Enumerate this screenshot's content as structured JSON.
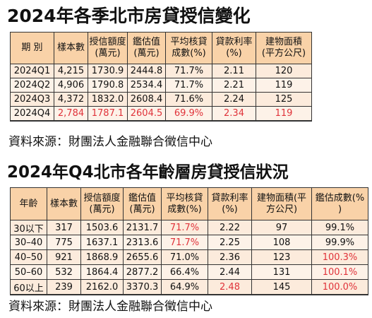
{
  "table1": {
    "title": "2024年各季北市房貸授信變化",
    "headers": [
      "期 別",
      "樣本數",
      "授信額度\n(萬元)",
      "鑑估值\n(萬元)",
      "平均核貸\n成數(%)",
      "貸款利率\n(%)",
      "建物面積\n(平方公尺)"
    ],
    "rows": [
      [
        "2024Q1",
        "4,215",
        "1730.9",
        "2444.8",
        "71.7%",
        "2.11",
        "120"
      ],
      [
        "2024Q2",
        "4,906",
        "1790.8",
        "2534.4",
        "71.7%",
        "2.21",
        "119"
      ],
      [
        "2024Q3",
        "4,372",
        "1832.0",
        "2608.4",
        "71.6%",
        "2.24",
        "125"
      ],
      [
        "2024Q4",
        "2,784",
        "1787.1",
        "2604.5",
        "69.9%",
        "2.34",
        "119"
      ]
    ],
    "source": "資料來源：財團法人金融聯合徵信中心"
  },
  "table2": {
    "title": "2024年Q4北市各年齡層房貸授信狀況",
    "headers": [
      "年齡",
      "樣本數",
      "授信額度\n(萬元)",
      "鑑估值\n(萬元)",
      "平均核貸\n成數(%)",
      "貸款利率\n(%)",
      "建物面積(平\n方公尺)",
      "鑑估成數(%\n)"
    ],
    "rows": [
      [
        "30以下",
        "317",
        "1503.6",
        "2131.7",
        "71.7%",
        "2.22",
        "97",
        "99.1%"
      ],
      [
        "30–40",
        "775",
        "1637.1",
        "2313.6",
        "71.7%",
        "2.25",
        "108",
        "99.9%"
      ],
      [
        "40–50",
        "921",
        "1868.9",
        "2655.6",
        "71.0%",
        "2.36",
        "123",
        "100.3%"
      ],
      [
        "50–60",
        "532",
        "1864.4",
        "2877.2",
        "66.4%",
        "2.44",
        "131",
        "100.1%"
      ],
      [
        "60以上",
        "239",
        "2162.0",
        "3370.3",
        "64.9%",
        "2.48",
        "145",
        "100.0%"
      ]
    ],
    "source": "資料來源：財團法人金融聯合徵信中心"
  },
  "colors": {
    "header_bg": "#f9d2a8",
    "row_bg": "#fcebdc",
    "highlight_text": "#e0333a"
  }
}
